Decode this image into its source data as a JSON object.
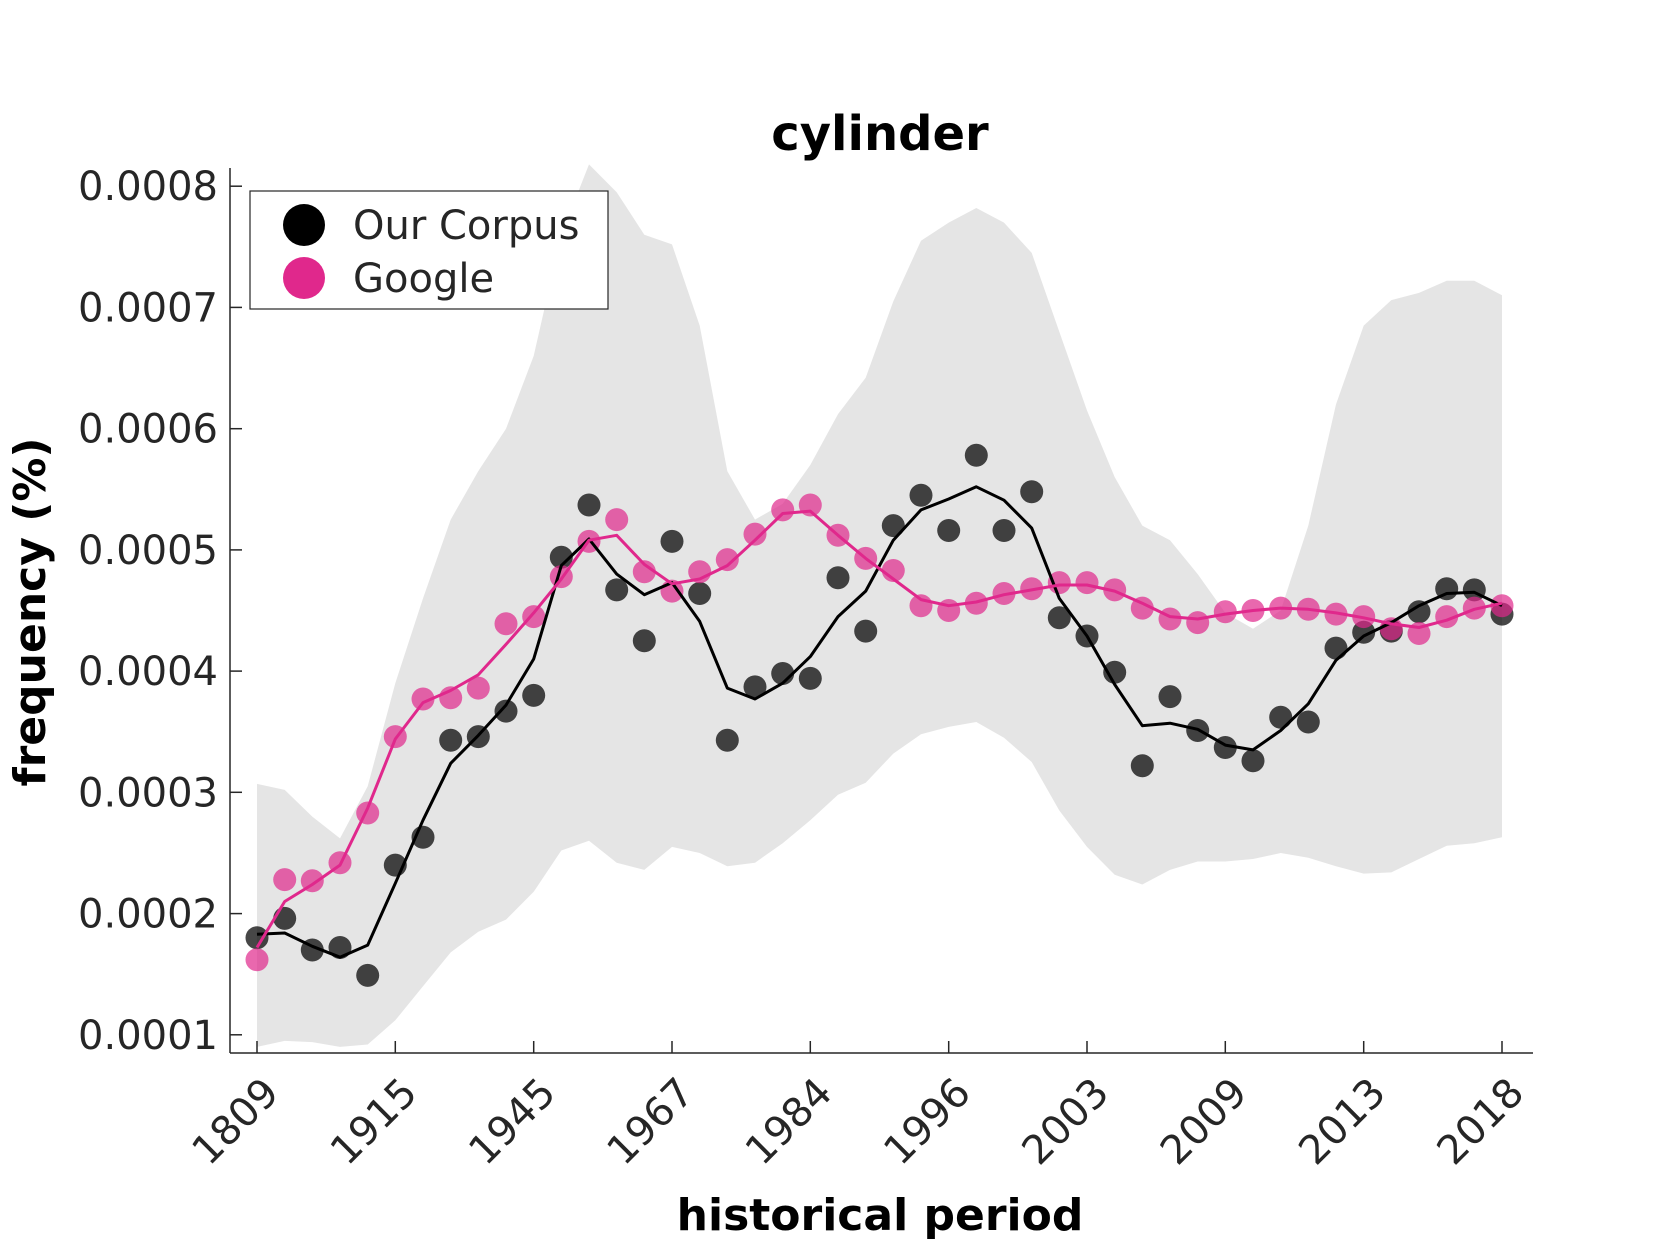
{
  "chart_data": {
    "type": "line",
    "title": "cylinder",
    "xlabel": "historical period",
    "ylabel": "frequency (%)",
    "x_tick_labels": [
      "1809",
      "1915",
      "1945",
      "1967",
      "1984",
      "1996",
      "2003",
      "2009",
      "2013",
      "2018"
    ],
    "y_ticks": [
      "0.0001",
      "0.0002",
      "0.0003",
      "0.0004",
      "0.0005",
      "0.0006",
      "0.0007",
      "0.0008"
    ],
    "ylim": [
      8.5e-05,
      0.000815
    ],
    "legend": {
      "placement": "top-left"
    },
    "grid": false,
    "band": {
      "name": "",
      "color": "#e5e5e5",
      "upper": [
        0.000307,
        0.000302,
        0.00028,
        0.000262,
        0.000305,
        0.00039,
        0.00046,
        0.000525,
        0.000565,
        0.0006,
        0.00066,
        0.00076,
        0.000818,
        0.000795,
        0.00076,
        0.000752,
        0.000685,
        0.000565,
        0.000525,
        0.000538,
        0.00057,
        0.000612,
        0.000642,
        0.000705,
        0.000755,
        0.00077,
        0.000782,
        0.00077,
        0.000745,
        0.00068,
        0.000615,
        0.00056,
        0.00052,
        0.000508,
        0.00048,
        0.000448,
        0.000435,
        0.00045,
        0.00052,
        0.00062,
        0.000685,
        0.000706,
        0.000712,
        0.000722,
        0.000722,
        0.00071
      ],
      "lower": [
        9e-05,
        9.5e-05,
        9.4e-05,
        9e-05,
        9.2e-05,
        0.000112,
        0.00014,
        0.000168,
        0.000185,
        0.000195,
        0.000218,
        0.000252,
        0.00026,
        0.000242,
        0.000236,
        0.000255,
        0.00025,
        0.000239,
        0.000242,
        0.000258,
        0.000277,
        0.000298,
        0.000308,
        0.000332,
        0.000348,
        0.000354,
        0.000358,
        0.000345,
        0.000325,
        0.000285,
        0.000255,
        0.000232,
        0.000224,
        0.000236,
        0.000243,
        0.000243,
        0.000245,
        0.00025,
        0.000246,
        0.000239,
        0.000233,
        0.000234,
        0.000245,
        0.000256,
        0.000258,
        0.000263
      ]
    },
    "series": [
      {
        "name": "Our Corpus",
        "color": "#000000",
        "points": [
          0.00018,
          0.000196,
          0.00017,
          0.000172,
          0.000149,
          0.00024,
          0.000263,
          0.000343,
          0.000346,
          0.000367,
          0.00038,
          0.000494,
          0.000537,
          0.000467,
          0.000425,
          0.000507,
          0.000464,
          0.000343,
          0.000387,
          0.000398,
          0.000394,
          0.000477,
          0.000433,
          0.00052,
          0.000545,
          0.000516,
          0.000578,
          0.000516,
          0.000548,
          0.000444,
          0.000429,
          0.000399,
          0.000322,
          0.000379,
          0.000351,
          0.000337,
          0.000326,
          0.000362,
          0.000358,
          0.000419,
          0.000432,
          0.000433,
          0.000449,
          0.000468,
          0.000467,
          0.000447
        ],
        "smoothed": [
          0.000183,
          0.000184,
          0.000173,
          0.000164,
          0.000174,
          0.000225,
          0.000277,
          0.000324,
          0.000347,
          0.000372,
          0.00041,
          0.000487,
          0.000509,
          0.00048,
          0.000463,
          0.000473,
          0.000441,
          0.000386,
          0.000377,
          0.00039,
          0.000412,
          0.000445,
          0.000466,
          0.000508,
          0.000533,
          0.000542,
          0.000552,
          0.000541,
          0.000518,
          0.00046,
          0.000429,
          0.000389,
          0.000355,
          0.000357,
          0.000352,
          0.000339,
          0.000335,
          0.000351,
          0.000373,
          0.000409,
          0.000429,
          0.00044,
          0.000454,
          0.000464,
          0.000465,
          0.000454
        ]
      },
      {
        "name": "Google",
        "color": "#e0288c",
        "points": [
          0.000162,
          0.000228,
          0.000227,
          0.000242,
          0.000283,
          0.000346,
          0.000377,
          0.000378,
          0.000386,
          0.000439,
          0.000445,
          0.000478,
          0.000507,
          0.000525,
          0.000482,
          0.000466,
          0.000482,
          0.000492,
          0.000513,
          0.000533,
          0.000537,
          0.000512,
          0.000493,
          0.000483,
          0.000454,
          0.00045,
          0.000456,
          0.000464,
          0.000468,
          0.000473,
          0.000473,
          0.000467,
          0.000452,
          0.000443,
          0.00044,
          0.000449,
          0.00045,
          0.000452,
          0.000451,
          0.000447,
          0.000445,
          0.000435,
          0.000431,
          0.000445,
          0.000452,
          0.000454
        ],
        "smoothed": [
          0.000172,
          0.00021,
          0.000224,
          0.00024,
          0.000287,
          0.000344,
          0.000374,
          0.000384,
          0.000397,
          0.000422,
          0.000448,
          0.000476,
          0.000508,
          0.000512,
          0.000488,
          0.000472,
          0.000476,
          0.000487,
          0.000508,
          0.00053,
          0.000532,
          0.000512,
          0.000493,
          0.000476,
          0.000459,
          0.000454,
          0.000457,
          0.000463,
          0.000467,
          0.000471,
          0.000471,
          0.000466,
          0.000456,
          0.000445,
          0.000443,
          0.000447,
          0.00045,
          0.000452,
          0.000451,
          0.000448,
          0.000444,
          0.000439,
          0.000436,
          0.000442,
          0.000451,
          0.000456
        ]
      }
    ]
  }
}
